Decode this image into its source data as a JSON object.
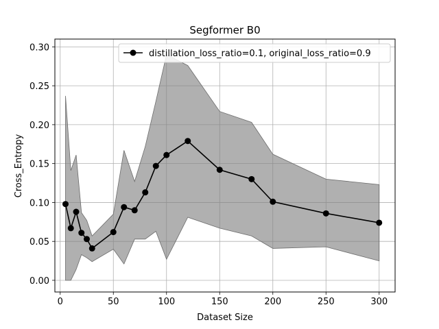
{
  "chart_data": {
    "type": "line",
    "title": "Segformer B0",
    "xlabel": "Dataset Size",
    "ylabel": "Cross_Entropy",
    "xlim": [
      -5,
      315
    ],
    "ylim": [
      -0.015,
      0.31
    ],
    "xticks": [
      0,
      50,
      100,
      150,
      200,
      250,
      300
    ],
    "yticks": [
      0.0,
      0.05,
      0.1,
      0.15,
      0.2,
      0.25,
      0.3
    ],
    "ytick_labels": [
      "0.00",
      "0.05",
      "0.10",
      "0.15",
      "0.20",
      "0.25",
      "0.30"
    ],
    "grid": true,
    "legend_position": "top-right",
    "series": [
      {
        "name": "distillation_loss_ratio=0.1, original_loss_ratio=0.9",
        "color": "#000000",
        "marker": "circle",
        "x": [
          5,
          10,
          15,
          20,
          25,
          30,
          50,
          60,
          70,
          80,
          90,
          100,
          120,
          150,
          180,
          200,
          250,
          300
        ],
        "y": [
          0.098,
          0.067,
          0.088,
          0.061,
          0.053,
          0.041,
          0.062,
          0.094,
          0.09,
          0.113,
          0.147,
          0.161,
          0.179,
          0.142,
          0.13,
          0.101,
          0.086,
          0.074
        ],
        "band_upper": [
          0.237,
          0.141,
          0.161,
          0.087,
          0.077,
          0.057,
          0.085,
          0.167,
          0.127,
          0.172,
          0.23,
          0.29,
          0.276,
          0.217,
          0.203,
          0.162,
          0.13,
          0.123
        ],
        "band_lower": [
          0.0,
          0.0,
          0.014,
          0.033,
          0.029,
          0.024,
          0.04,
          0.021,
          0.053,
          0.053,
          0.063,
          0.027,
          0.081,
          0.067,
          0.057,
          0.041,
          0.043,
          0.025
        ],
        "band_color": "#808080"
      }
    ]
  }
}
